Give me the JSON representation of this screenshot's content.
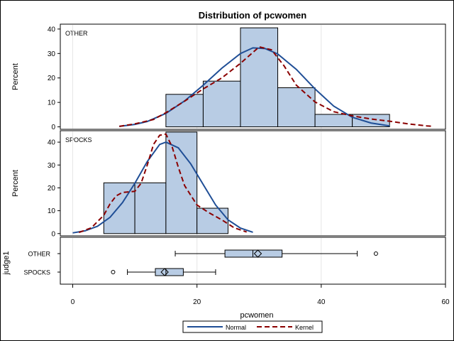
{
  "chart_data": {
    "type": "histogram",
    "title": "Distribution of pcwomen",
    "xlabel": "pcwomen",
    "x_ticks": [
      0,
      20,
      40,
      60
    ],
    "xlim": [
      -2,
      60
    ],
    "grid": true,
    "legend_placement": "bottom",
    "colors": {
      "bar_fill": "#b8cce4",
      "bar_stroke": "#000000",
      "normal": "#1f4e96",
      "kernel": "#8b0000",
      "grid": "#e6e6e6"
    },
    "legend": [
      {
        "label": "Normal",
        "style": "solid",
        "color": "#1f4e96"
      },
      {
        "label": "Kernel",
        "style": "dashed",
        "color": "#8b0000"
      }
    ],
    "panels": [
      {
        "label": "OTHER",
        "ylabel": "Percent",
        "y_ticks": [
          0,
          10,
          20,
          30,
          40
        ],
        "ylim": [
          -1,
          42
        ],
        "bins": [
          {
            "x0": 15,
            "x1": 21,
            "value": 13.3
          },
          {
            "x0": 21,
            "x1": 27,
            "value": 18.7
          },
          {
            "x0": 27,
            "x1": 33,
            "value": 40.5
          },
          {
            "x0": 33,
            "x1": 39,
            "value": 16.0
          },
          {
            "x0": 39,
            "x1": 45,
            "value": 5.1
          },
          {
            "x0": 45,
            "x1": 51,
            "value": 5.1
          }
        ],
        "normal_curve": [
          [
            7.5,
            0.2
          ],
          [
            10,
            1
          ],
          [
            12,
            2.2
          ],
          [
            15,
            5.5
          ],
          [
            18,
            10.6
          ],
          [
            21,
            17
          ],
          [
            24,
            24
          ],
          [
            27,
            30
          ],
          [
            29,
            32.3
          ],
          [
            31,
            32
          ],
          [
            33,
            29.8
          ],
          [
            36,
            23.5
          ],
          [
            39,
            15.5
          ],
          [
            42,
            8.5
          ],
          [
            45,
            3.9
          ],
          [
            48,
            1.6
          ],
          [
            51,
            0.4
          ]
        ],
        "kernel_curve": [
          [
            7.5,
            0.2
          ],
          [
            10,
            1.2
          ],
          [
            13,
            3
          ],
          [
            15,
            5.8
          ],
          [
            18,
            10.5
          ],
          [
            21,
            15.5
          ],
          [
            24,
            20
          ],
          [
            27,
            26
          ],
          [
            30,
            32.7
          ],
          [
            32,
            31.5
          ],
          [
            34,
            25
          ],
          [
            36,
            17
          ],
          [
            39,
            10.2
          ],
          [
            42,
            6.2
          ],
          [
            45,
            4.5
          ],
          [
            48,
            3.2
          ],
          [
            51,
            2.3
          ],
          [
            54,
            1.2
          ],
          [
            57,
            0.4
          ],
          [
            58,
            0.2
          ]
        ]
      },
      {
        "label": "SPOCKS",
        "ylabel": "Percent",
        "y_ticks": [
          0,
          10,
          20,
          30,
          40
        ],
        "ylim": [
          -1,
          45
        ],
        "bins": [
          {
            "x0": 5,
            "x1": 10,
            "value": 22.2
          },
          {
            "x0": 10,
            "x1": 15,
            "value": 22.2
          },
          {
            "x0": 15,
            "x1": 20,
            "value": 44.4
          },
          {
            "x0": 20,
            "x1": 25,
            "value": 11.1
          }
        ],
        "normal_curve": [
          [
            0,
            0.3
          ],
          [
            2,
            1.2
          ],
          [
            4,
            3.2
          ],
          [
            6,
            7.1
          ],
          [
            8,
            13.5
          ],
          [
            10,
            22
          ],
          [
            12,
            31.5
          ],
          [
            14,
            39
          ],
          [
            15,
            40
          ],
          [
            17,
            37.5
          ],
          [
            19,
            30.5
          ],
          [
            21,
            21.5
          ],
          [
            23,
            12.5
          ],
          [
            25,
            6
          ],
          [
            27,
            2.4
          ],
          [
            29,
            0.6
          ]
        ],
        "kernel_curve": [
          [
            1,
            0.5
          ],
          [
            3,
            2.5
          ],
          [
            5,
            8
          ],
          [
            6,
            13
          ],
          [
            7,
            16.5
          ],
          [
            8,
            18
          ],
          [
            10,
            18.5
          ],
          [
            11,
            22
          ],
          [
            12,
            30
          ],
          [
            13,
            39
          ],
          [
            14,
            43
          ],
          [
            15,
            43.5
          ],
          [
            16,
            38
          ],
          [
            17,
            29
          ],
          [
            18,
            21
          ],
          [
            20,
            12.5
          ],
          [
            22,
            9
          ],
          [
            24,
            6
          ],
          [
            26,
            2.5
          ],
          [
            28,
            0.7
          ]
        ]
      }
    ],
    "boxplot": {
      "ylabel": "judge1",
      "rows": [
        {
          "label": "OTHER",
          "whisker_low": 16.5,
          "q1": 24.5,
          "q3": 33.7,
          "median": 29.0,
          "mean": 29.8,
          "whisker_high": 45.8,
          "outliers": [
            48.8
          ]
        },
        {
          "label": "SPOCKS",
          "whisker_low": 8.8,
          "q1": 13.3,
          "q3": 17.8,
          "median": 15.0,
          "mean": 14.8,
          "whisker_high": 23.0,
          "outliers": [
            6.5
          ]
        }
      ]
    }
  }
}
